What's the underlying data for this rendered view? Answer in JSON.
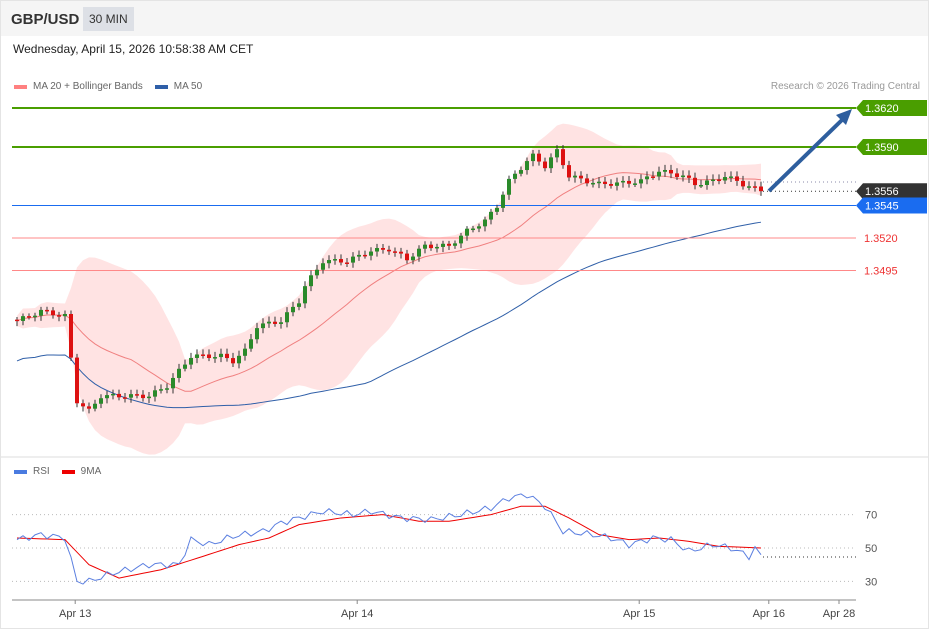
{
  "header": {
    "symbol": "GBP/USD",
    "timeframe": "30 MIN",
    "datetime": "Wednesday, April 15, 2026 10:58:38 AM CET"
  },
  "legend": {
    "ma20": "MA 20 + Bollinger Bands",
    "ma50": "MA 50",
    "rsi": "RSI",
    "ma9": "9MA"
  },
  "credit": "Research © 2026 Trading Central",
  "colors": {
    "resistance": "#4a9e00",
    "current": "#333333",
    "ma50": "#2f5fa8",
    "support": "#ee3333",
    "bb": "#ffcccc",
    "pivot": "#1a6cf0",
    "arrow": "#2e5e9e"
  },
  "levels": [
    {
      "label": "1.3620",
      "price": 1.362,
      "type": "resistance"
    },
    {
      "label": "1.3590",
      "price": 1.359,
      "type": "resistance"
    },
    {
      "label": "1.3556",
      "price": 1.3556,
      "type": "current"
    },
    {
      "label": "1.3545",
      "price": 1.3545,
      "type": "pivot"
    },
    {
      "label": "1.3520",
      "price": 1.352,
      "type": "support"
    },
    {
      "label": "1.3495",
      "price": 1.3495,
      "type": "support"
    }
  ],
  "chart_data": {
    "type": "candlestick",
    "price_keypoints": [
      [
        0,
        1.34562
      ],
      [
        4,
        1.34638
      ],
      [
        8,
        1.346
      ],
      [
        10,
        1.33946
      ],
      [
        12,
        1.33869
      ],
      [
        14,
        1.33985
      ],
      [
        22,
        1.33985
      ],
      [
        25,
        1.34062
      ],
      [
        27,
        1.34177
      ],
      [
        29,
        1.34292
      ],
      [
        34,
        1.34292
      ],
      [
        36,
        1.34254
      ],
      [
        38,
        1.34331
      ],
      [
        40,
        1.34523
      ],
      [
        44,
        1.34562
      ],
      [
        47,
        1.34715
      ],
      [
        48,
        1.34831
      ],
      [
        51,
        1.35023
      ],
      [
        55,
        1.35023
      ],
      [
        59,
        1.351
      ],
      [
        62,
        1.35115
      ],
      [
        65,
        1.35038
      ],
      [
        68,
        1.35138
      ],
      [
        72,
        1.35138
      ],
      [
        75,
        1.35254
      ],
      [
        78,
        1.35331
      ],
      [
        80,
        1.35446
      ],
      [
        82,
        1.35638
      ],
      [
        85,
        1.35792
      ],
      [
        86,
        1.35831
      ],
      [
        88,
        1.35754
      ],
      [
        90,
        1.35869
      ],
      [
        92,
        1.35677
      ],
      [
        95,
        1.35638
      ],
      [
        97,
        1.35615
      ],
      [
        101,
        1.35623
      ],
      [
        104,
        1.35638
      ],
      [
        107,
        1.35715
      ],
      [
        111,
        1.35677
      ],
      [
        113,
        1.35615
      ],
      [
        116,
        1.35638
      ],
      [
        118,
        1.35677
      ],
      [
        121,
        1.35615
      ],
      [
        124,
        1.3556
      ]
    ],
    "rsi": [
      [
        0,
        55
      ],
      [
        4,
        58
      ],
      [
        8,
        56
      ],
      [
        10,
        30
      ],
      [
        12,
        30
      ],
      [
        16,
        35
      ],
      [
        22,
        40
      ],
      [
        27,
        40
      ],
      [
        29,
        55
      ],
      [
        32,
        52
      ],
      [
        36,
        57
      ],
      [
        41,
        60
      ],
      [
        44,
        65
      ],
      [
        47,
        68
      ],
      [
        51,
        72
      ],
      [
        56,
        70
      ],
      [
        59,
        72
      ],
      [
        64,
        68
      ],
      [
        69,
        67
      ],
      [
        74,
        70
      ],
      [
        79,
        74
      ],
      [
        82,
        80
      ],
      [
        85,
        82
      ],
      [
        88,
        75
      ],
      [
        91,
        60
      ],
      [
        96,
        58
      ],
      [
        99,
        56
      ],
      [
        102,
        52
      ],
      [
        106,
        56
      ],
      [
        109,
        55
      ],
      [
        112,
        48
      ],
      [
        116,
        52
      ],
      [
        119,
        50
      ],
      [
        122,
        45
      ],
      [
        123,
        50
      ],
      [
        124,
        45
      ]
    ],
    "rsi_ma9": [
      [
        0,
        56
      ],
      [
        8,
        55
      ],
      [
        12,
        40
      ],
      [
        17,
        32
      ],
      [
        24,
        37
      ],
      [
        31,
        45
      ],
      [
        37,
        52
      ],
      [
        42,
        56
      ],
      [
        47,
        64
      ],
      [
        54,
        68
      ],
      [
        61,
        70
      ],
      [
        67,
        66
      ],
      [
        72,
        66
      ],
      [
        79,
        70
      ],
      [
        84,
        75
      ],
      [
        88,
        75
      ],
      [
        92,
        68
      ],
      [
        97,
        58
      ],
      [
        102,
        55
      ],
      [
        107,
        56
      ],
      [
        112,
        54
      ],
      [
        117,
        51
      ],
      [
        124,
        50
      ]
    ],
    "rsi_levels": [
      70,
      50,
      30
    ],
    "x_ticks": [
      {
        "label": "Apr 13",
        "index": 9.7
      },
      {
        "label": "Apr 14",
        "index": 56.7
      },
      {
        "label": "Apr 15",
        "index": 103.7
      },
      {
        "label": "Apr 16",
        "index": 125.3
      },
      {
        "label": "Apr 28",
        "index": 137
      }
    ],
    "price_range": [
      1.3345,
      1.3645
    ]
  }
}
